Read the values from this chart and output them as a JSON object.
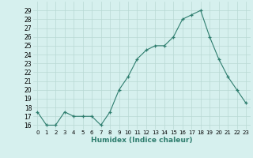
{
  "x": [
    0,
    1,
    2,
    3,
    4,
    5,
    6,
    7,
    8,
    9,
    10,
    11,
    12,
    13,
    14,
    15,
    16,
    17,
    18,
    19,
    20,
    21,
    22,
    23
  ],
  "y": [
    17.5,
    16.0,
    16.0,
    17.5,
    17.0,
    17.0,
    17.0,
    16.0,
    17.5,
    20.0,
    21.5,
    23.5,
    24.5,
    25.0,
    25.0,
    26.0,
    28.0,
    28.5,
    29.0,
    26.0,
    23.5,
    21.5,
    20.0,
    18.5
  ],
  "line_color": "#2e7d6e",
  "marker": "+",
  "marker_size": 3,
  "bg_color": "#d6f0ee",
  "grid_color": "#b8d8d4",
  "xlabel": "Humidex (Indice chaleur)",
  "ylim": [
    15.5,
    30.0
  ],
  "xlim": [
    -0.5,
    23.5
  ],
  "yticks": [
    16,
    17,
    18,
    19,
    20,
    21,
    22,
    23,
    24,
    25,
    26,
    27,
    28,
    29
  ],
  "xticks": [
    0,
    1,
    2,
    3,
    4,
    5,
    6,
    7,
    8,
    9,
    10,
    11,
    12,
    13,
    14,
    15,
    16,
    17,
    18,
    19,
    20,
    21,
    22,
    23
  ],
  "xtick_labels": [
    "0",
    "1",
    "2",
    "3",
    "4",
    "5",
    "6",
    "7",
    "8",
    "9",
    "10",
    "11",
    "12",
    "13",
    "14",
    "15",
    "16",
    "17",
    "18",
    "19",
    "20",
    "21",
    "22",
    "23"
  ],
  "xlabel_fontsize": 6.5,
  "xlabel_fontweight": "bold",
  "ytick_fontsize": 5.5,
  "xtick_fontsize": 5.0
}
